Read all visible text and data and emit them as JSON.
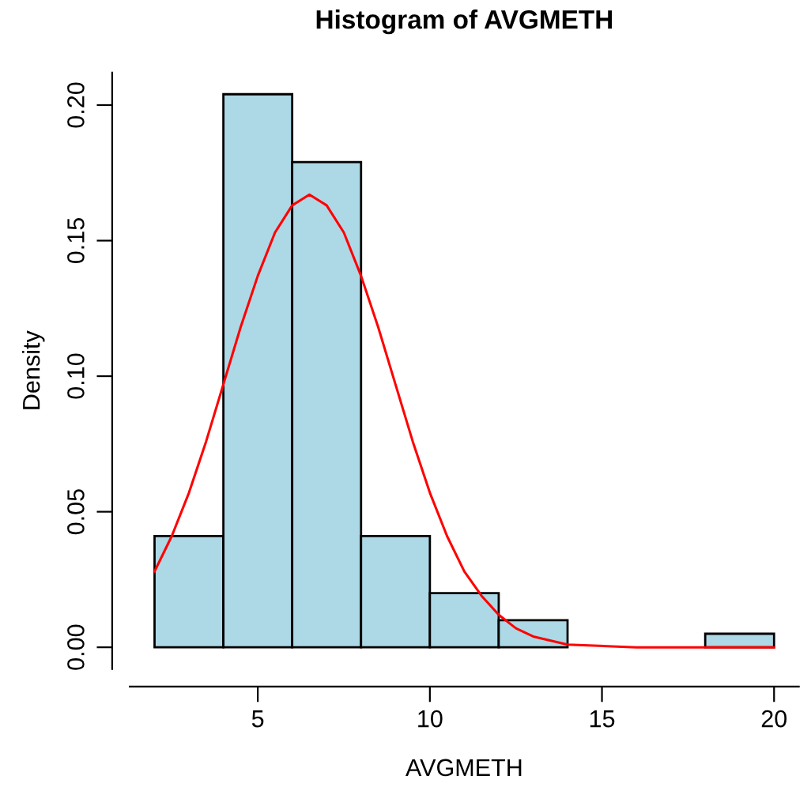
{
  "chart_data": {
    "type": "histogram",
    "title": "Histogram of AVGMETH",
    "xlabel": "AVGMETH",
    "ylabel": "Density",
    "bins": [
      2,
      4,
      6,
      8,
      10,
      12,
      14,
      16,
      18,
      20
    ],
    "values": [
      0.041,
      0.204,
      0.179,
      0.041,
      0.02,
      0.01,
      0,
      0,
      0.005
    ],
    "color": "#add8e6",
    "series": [
      {
        "type": "line",
        "color": "#ff0000",
        "x": [
          2,
          2.5,
          3,
          3.5,
          4,
          4.5,
          5,
          5.5,
          6,
          6.5,
          7,
          7.5,
          8,
          8.5,
          9,
          9.5,
          10,
          10.5,
          11,
          11.5,
          12,
          12.5,
          13,
          14,
          16,
          20
        ],
        "values": [
          0.028,
          0.041,
          0.057,
          0.076,
          0.097,
          0.118,
          0.137,
          0.153,
          0.163,
          0.167,
          0.163,
          0.153,
          0.137,
          0.118,
          0.097,
          0.076,
          0.057,
          0.041,
          0.028,
          0.019,
          0.012,
          0.007,
          0.004,
          0.001,
          0,
          0
        ]
      }
    ],
    "xlim": [
      1.28,
      20.72
    ],
    "ylim": [
      -0.008,
      0.212
    ],
    "xticks": [
      5,
      10,
      15,
      20
    ],
    "yticks": [
      {
        "value": 0,
        "label": "0.00"
      },
      {
        "value": 0.05,
        "label": "0.05"
      },
      {
        "value": 0.1,
        "label": "0.10"
      },
      {
        "value": 0.15,
        "label": "0.15"
      },
      {
        "value": 0.2,
        "label": "0.20"
      }
    ]
  }
}
